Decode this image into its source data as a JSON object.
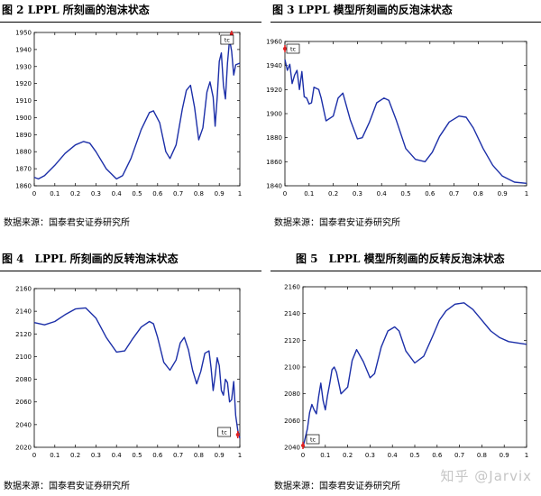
{
  "watermark": "知乎 @Jarvix",
  "source_text": "数据来源：国泰君安证券研究所",
  "figures": [
    {
      "title": "图 2 LPPL 所刻画的泡沫状态"
    },
    {
      "title": "图 3 LPPL 模型所刻画的反泡沫状态"
    },
    {
      "title": "图 4　LPPL 所刻画的反转泡沫状态"
    },
    {
      "title": "图 5　LPPL 模型所刻画的反转反泡沫状态"
    }
  ],
  "chart_data": [
    {
      "type": "line",
      "title": "图 2 LPPL 所刻画的泡沫状态",
      "xlabel": "",
      "ylabel": "",
      "xlim": [
        0,
        1
      ],
      "ylim": [
        1860,
        1950
      ],
      "xticks": [
        "0",
        "0.1",
        "0.2",
        "0.3",
        "0.4",
        "0.5",
        "0.6",
        "0.7",
        "0.8",
        "0.9",
        "1"
      ],
      "yticks": [
        "1860",
        "1870",
        "1880",
        "1890",
        "1900",
        "1910",
        "1920",
        "1930",
        "1940",
        "1950"
      ],
      "line_color": "#1c2fa8",
      "marker_color": "#e02020",
      "annotation": "tc",
      "annotation_x": 0.96,
      "x": [
        0,
        0.02,
        0.05,
        0.1,
        0.15,
        0.2,
        0.24,
        0.27,
        0.3,
        0.35,
        0.4,
        0.43,
        0.47,
        0.52,
        0.56,
        0.58,
        0.61,
        0.64,
        0.66,
        0.69,
        0.72,
        0.74,
        0.76,
        0.78,
        0.8,
        0.82,
        0.84,
        0.855,
        0.87,
        0.88,
        0.89,
        0.9,
        0.91,
        0.92,
        0.93,
        0.94,
        0.95,
        0.96,
        0.97,
        0.98,
        1.0
      ],
      "y": [
        1865,
        1864,
        1866,
        1872,
        1879,
        1884,
        1886,
        1885,
        1880,
        1870,
        1864,
        1866,
        1876,
        1893,
        1903,
        1904,
        1897,
        1880,
        1876,
        1884,
        1905,
        1916,
        1919,
        1906,
        1887,
        1894,
        1915,
        1921,
        1912,
        1895,
        1912,
        1933,
        1938,
        1919,
        1911,
        1932,
        1946,
        1939,
        1925,
        1931,
        1932
      ]
    },
    {
      "type": "line",
      "title": "图 3 LPPL 模型所刻画的反泡沫状态",
      "xlabel": "",
      "ylabel": "",
      "xlim": [
        0,
        1
      ],
      "ylim": [
        1840,
        1960
      ],
      "xticks": [
        "0",
        "0.1",
        "0.2",
        "0.3",
        "0.4",
        "0.5",
        "0.6",
        "0.7",
        "0.8",
        "0.9",
        "1"
      ],
      "yticks": [
        "1840",
        "1860",
        "1880",
        "1900",
        "1920",
        "1940",
        "1960"
      ],
      "line_color": "#1c2fa8",
      "marker_color": "#e02020",
      "annotation": "tc",
      "annotation_x": 0.0,
      "x": [
        0,
        0.01,
        0.02,
        0.03,
        0.04,
        0.05,
        0.06,
        0.07,
        0.08,
        0.09,
        0.1,
        0.11,
        0.12,
        0.14,
        0.15,
        0.17,
        0.2,
        0.22,
        0.24,
        0.27,
        0.3,
        0.32,
        0.35,
        0.38,
        0.41,
        0.43,
        0.46,
        0.5,
        0.54,
        0.58,
        0.61,
        0.64,
        0.68,
        0.72,
        0.75,
        0.78,
        0.82,
        0.86,
        0.9,
        0.95,
        1.0
      ],
      "y": [
        1945,
        1936,
        1941,
        1925,
        1932,
        1936,
        1920,
        1935,
        1914,
        1913,
        1908,
        1909,
        1922,
        1920,
        1913,
        1894,
        1898,
        1913,
        1917,
        1895,
        1879,
        1880,
        1893,
        1909,
        1913,
        1911,
        1895,
        1871,
        1862,
        1860,
        1868,
        1881,
        1893,
        1898,
        1897,
        1888,
        1871,
        1857,
        1848,
        1843,
        1842
      ]
    },
    {
      "type": "line",
      "title": "图 4　LPPL 所刻画的反转泡沫状态",
      "xlabel": "",
      "ylabel": "",
      "xlim": [
        0,
        1
      ],
      "ylim": [
        2020,
        2160
      ],
      "xticks": [
        "0",
        "0.1",
        "0.2",
        "0.3",
        "0.4",
        "0.5",
        "0.6",
        "0.7",
        "0.8",
        "0.9",
        "1"
      ],
      "yticks": [
        "2020",
        "2040",
        "2060",
        "2080",
        "2100",
        "2120",
        "2140",
        "2160"
      ],
      "line_color": "#1c2fa8",
      "marker_color": "#e02020",
      "annotation": "tc",
      "annotation_x": 0.99,
      "x": [
        0,
        0.05,
        0.1,
        0.15,
        0.2,
        0.25,
        0.3,
        0.35,
        0.4,
        0.44,
        0.48,
        0.52,
        0.56,
        0.58,
        0.6,
        0.63,
        0.66,
        0.69,
        0.71,
        0.73,
        0.75,
        0.77,
        0.79,
        0.81,
        0.83,
        0.85,
        0.86,
        0.87,
        0.88,
        0.89,
        0.9,
        0.91,
        0.92,
        0.93,
        0.94,
        0.95,
        0.96,
        0.97,
        0.98,
        0.99,
        1.0
      ],
      "y": [
        2130,
        2128,
        2131,
        2137,
        2142,
        2143,
        2134,
        2117,
        2104,
        2105,
        2116,
        2126,
        2131,
        2129,
        2117,
        2095,
        2088,
        2097,
        2112,
        2117,
        2106,
        2088,
        2076,
        2087,
        2103,
        2105,
        2090,
        2070,
        2083,
        2099,
        2092,
        2070,
        2066,
        2080,
        2077,
        2060,
        2062,
        2078,
        2048,
        2035,
        2028
      ]
    },
    {
      "type": "line",
      "title": "图 5　LPPL 模型所刻画的反转反泡沫状态",
      "xlabel": "",
      "ylabel": "",
      "xlim": [
        0,
        1
      ],
      "ylim": [
        2040,
        2160
      ],
      "xticks": [
        "0",
        "0.1",
        "0.2",
        "0.3",
        "0.4",
        "0.5",
        "0.6",
        "0.7",
        "0.8",
        "0.9",
        "1"
      ],
      "yticks": [
        "2040",
        "2060",
        "2080",
        "2100",
        "2120",
        "2140",
        "2160"
      ],
      "line_color": "#1c2fa8",
      "marker_color": "#e02020",
      "annotation": "tc",
      "annotation_x": 0.0,
      "x": [
        0,
        0.01,
        0.02,
        0.03,
        0.04,
        0.05,
        0.06,
        0.07,
        0.08,
        0.09,
        0.1,
        0.11,
        0.12,
        0.13,
        0.14,
        0.15,
        0.17,
        0.2,
        0.22,
        0.24,
        0.27,
        0.3,
        0.32,
        0.35,
        0.38,
        0.41,
        0.43,
        0.46,
        0.5,
        0.54,
        0.58,
        0.61,
        0.64,
        0.68,
        0.72,
        0.76,
        0.8,
        0.84,
        0.88,
        0.92,
        0.96,
        1.0
      ],
      "y": [
        2040,
        2047,
        2054,
        2066,
        2072,
        2068,
        2065,
        2078,
        2088,
        2075,
        2068,
        2079,
        2088,
        2098,
        2100,
        2096,
        2080,
        2085,
        2105,
        2113,
        2104,
        2092,
        2095,
        2115,
        2127,
        2130,
        2127,
        2112,
        2103,
        2108,
        2123,
        2135,
        2142,
        2147,
        2148,
        2143,
        2135,
        2127,
        2122,
        2119,
        2118,
        2117
      ]
    }
  ]
}
